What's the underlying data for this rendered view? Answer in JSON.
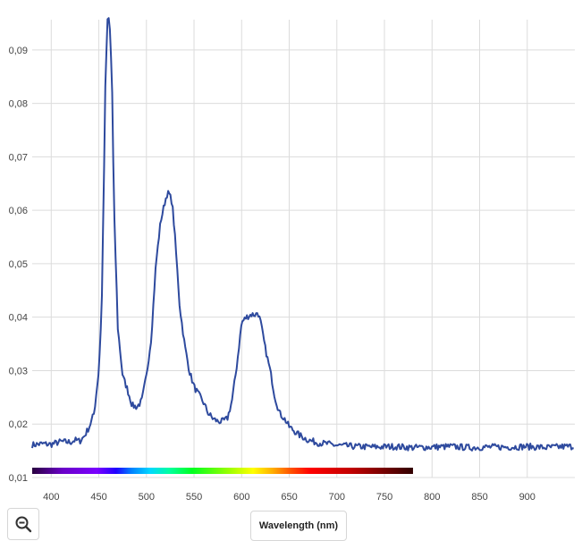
{
  "chart_data": {
    "type": "line",
    "title": "",
    "xlabel": "Wavelength (nm)",
    "ylabel": "",
    "xlim": [
      380,
      950
    ],
    "ylim": [
      0.01,
      0.098
    ],
    "x_ticks": [
      400,
      450,
      500,
      550,
      600,
      650,
      700,
      750,
      800,
      850,
      900
    ],
    "y_ticks": [
      "0,01",
      "0,02",
      "0,03",
      "0,04",
      "0,05",
      "0,06",
      "0,07",
      "0,08",
      "0,09"
    ],
    "y_tick_values": [
      0.01,
      0.02,
      0.03,
      0.04,
      0.05,
      0.06,
      0.07,
      0.08,
      0.09
    ],
    "grid": true,
    "line_color": "#2e4a9e",
    "series": [
      {
        "x": [
          380,
          390,
          400,
          410,
          420,
          425,
          430,
          435,
          440,
          445,
          450,
          453,
          455,
          457,
          459,
          460,
          462,
          464,
          466,
          470,
          475,
          480,
          485,
          490,
          495,
          500,
          505,
          510,
          515,
          520,
          522,
          524,
          527,
          530,
          535,
          540,
          545,
          550,
          555,
          560,
          565,
          570,
          575,
          580,
          585,
          590,
          595,
          600,
          605,
          610,
          615,
          617,
          620,
          622,
          625,
          630,
          635,
          640,
          645,
          650,
          660,
          670,
          680,
          690,
          700,
          720,
          740,
          760,
          780,
          800,
          820,
          840,
          860,
          880,
          900,
          920,
          940,
          950
        ],
        "y": [
          0.0161,
          0.0163,
          0.0162,
          0.0167,
          0.0166,
          0.017,
          0.0168,
          0.0178,
          0.0195,
          0.022,
          0.03,
          0.042,
          0.062,
          0.085,
          0.095,
          0.0965,
          0.093,
          0.082,
          0.06,
          0.038,
          0.029,
          0.0265,
          0.0235,
          0.0232,
          0.0243,
          0.029,
          0.036,
          0.05,
          0.058,
          0.062,
          0.0632,
          0.063,
          0.0615,
          0.055,
          0.042,
          0.035,
          0.03,
          0.027,
          0.0255,
          0.024,
          0.022,
          0.021,
          0.0205,
          0.0205,
          0.021,
          0.0245,
          0.031,
          0.039,
          0.04,
          0.0405,
          0.0405,
          0.041,
          0.039,
          0.037,
          0.034,
          0.03,
          0.025,
          0.022,
          0.021,
          0.0195,
          0.018,
          0.017,
          0.0165,
          0.0163,
          0.016,
          0.0158,
          0.0157,
          0.0158,
          0.0156,
          0.0157,
          0.0158,
          0.0156,
          0.0157,
          0.0157,
          0.0158,
          0.0156,
          0.0158,
          0.0158
        ]
      }
    ],
    "spectrum_bar_range": [
      380,
      780
    ]
  },
  "controls": {
    "zoom_icon": "zoom-out-icon"
  }
}
